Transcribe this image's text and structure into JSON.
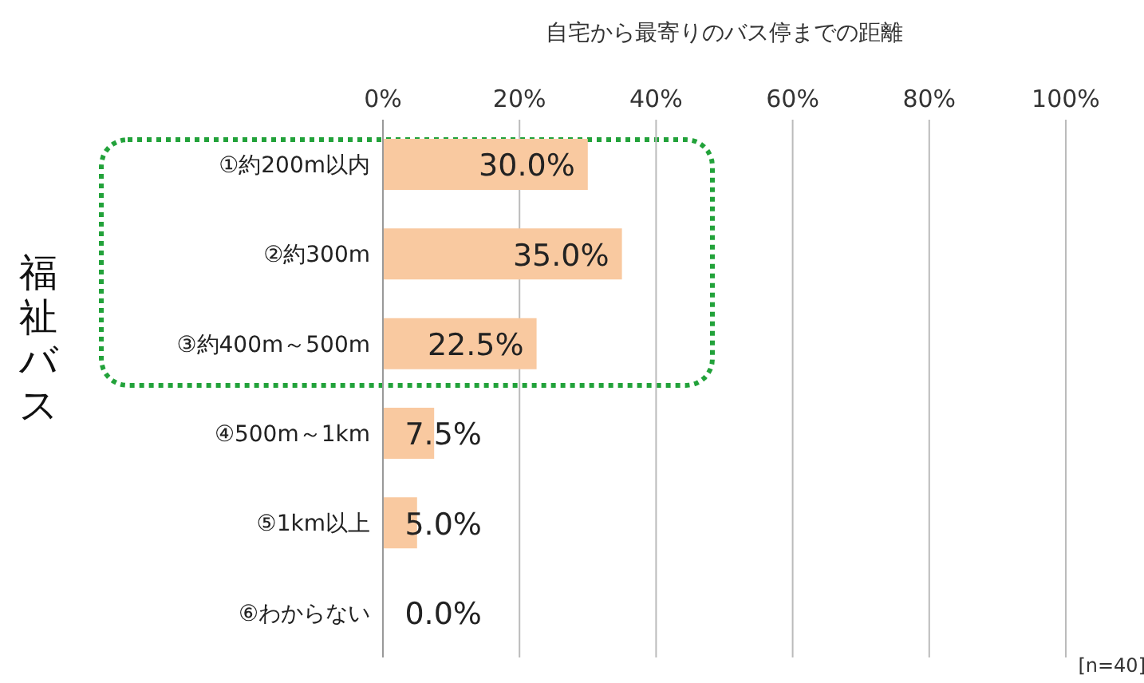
{
  "chart_data": {
    "type": "bar",
    "orientation": "horizontal",
    "title": "自宅から最寄りのバス停までの距離",
    "ylabel": "福祉バス",
    "categories": [
      "①約200m以内",
      "②約300m",
      "③約400m～500m",
      "④500m～1km",
      "⑤1km以上",
      "⑥わからない"
    ],
    "values": [
      30.0,
      35.0,
      22.5,
      7.5,
      5.0,
      0.0
    ],
    "value_labels": [
      "30.0%",
      "35.0%",
      "22.5%",
      "7.5%",
      "5.0%",
      "0.0%"
    ],
    "color": "#f9c9a0",
    "xlim": [
      0,
      100
    ],
    "xticks": [
      {
        "value": 0,
        "label": "0%"
      },
      {
        "value": 20,
        "label": "20%"
      },
      {
        "value": 40,
        "label": "40%"
      },
      {
        "value": 60,
        "label": "60%"
      },
      {
        "value": 80,
        "label": "80%"
      },
      {
        "value": 100,
        "label": "100%"
      }
    ],
    "grid": "x",
    "annotations": [
      "[n=40]"
    ]
  }
}
